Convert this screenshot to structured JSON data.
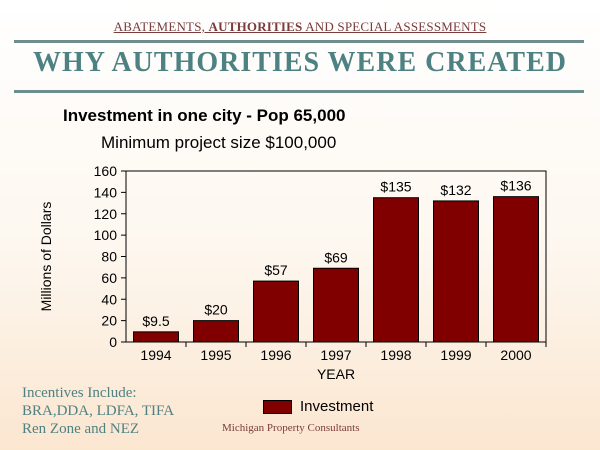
{
  "header": {
    "part1": "ABATEMENTS, ",
    "part2": "AUTHORITIES",
    "part3": " AND SPECIAL ASSESSMENTS"
  },
  "page_title": "WHY AUTHORITIES WERE CREATED",
  "incentives": {
    "line1": "Incentives Include:",
    "line2": "BRA,DDA, LDFA, TIFA",
    "line3": "Ren Zone and NEZ"
  },
  "credit": "Michigan Property Consultants",
  "colors": {
    "bar": "#800000",
    "title": "#4e8282",
    "rule": "#6e8d8d",
    "header": "#7a3b3b"
  },
  "chart_data": {
    "type": "bar",
    "title": "Investment in one city - Pop 65,000",
    "subtitle": "Minimum project size $100,000",
    "xlabel": "YEAR",
    "ylabel": "Millions of Dollars",
    "categories": [
      "1994",
      "1995",
      "1996",
      "1997",
      "1998",
      "1999",
      "2000"
    ],
    "series": [
      {
        "name": "Investment",
        "values": [
          9.5,
          20,
          57,
          69,
          135,
          132,
          136
        ],
        "labels": [
          "$9.5",
          "$20",
          "$57",
          "$69",
          "$135",
          "$132",
          "$136"
        ]
      }
    ],
    "ylim": [
      0,
      160
    ],
    "yticks": [
      0,
      20,
      40,
      60,
      80,
      100,
      120,
      140,
      160
    ],
    "grid": false,
    "legend": "bottom"
  }
}
